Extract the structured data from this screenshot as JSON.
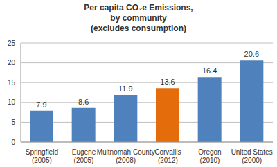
{
  "chart_data": {
    "type": "bar",
    "title": [
      "Per capita CO₂e Emissions,",
      "by community",
      "(excludes consumption)"
    ],
    "categories": [
      "Springfield (2005)",
      "Eugene (2005)",
      "Multnomah County (2008)",
      "Corvallis (2012)",
      "Oregon (2010)",
      "United States (2000)"
    ],
    "values": [
      7.9,
      8.6,
      11.9,
      13.6,
      16.4,
      20.6
    ],
    "colors": [
      "#4f81bd",
      "#4f81bd",
      "#4f81bd",
      "#e46c0a",
      "#4f81bd",
      "#4f81bd"
    ],
    "ylim": [
      0,
      25
    ],
    "yticks": [
      0,
      5,
      10,
      15,
      20,
      25
    ],
    "grid": true,
    "data_labels": true
  }
}
